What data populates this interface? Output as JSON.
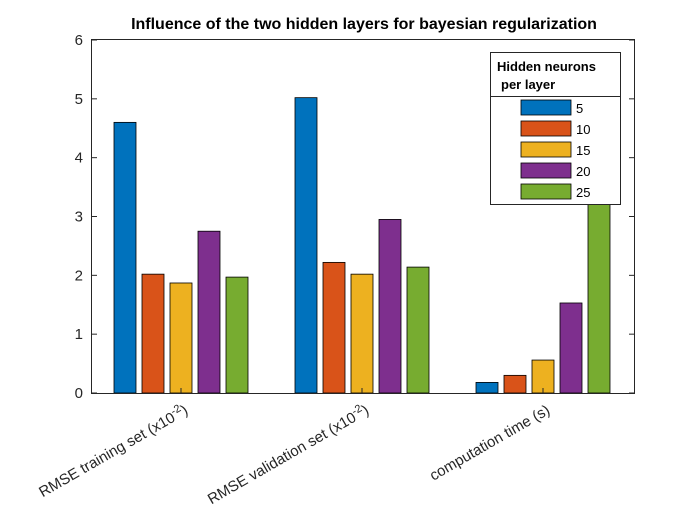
{
  "chart_data": {
    "type": "bar",
    "title": "Influence of the two hidden layers for bayesian regularization",
    "categories": [
      {
        "label": "RMSE training set (x10",
        "exp": "-2",
        "suffix": ")"
      },
      {
        "label": "RMSE validation set (x10",
        "exp": "-2",
        "suffix": ")"
      },
      {
        "label": "computation time (s)",
        "exp": "",
        "suffix": ""
      }
    ],
    "series": [
      {
        "name": "5",
        "color": "#0072BD",
        "values": [
          4.6,
          5.02,
          0.18
        ]
      },
      {
        "name": "10",
        "color": "#D95319",
        "values": [
          2.02,
          2.22,
          0.3
        ]
      },
      {
        "name": "15",
        "color": "#EDB120",
        "values": [
          1.87,
          2.02,
          0.56
        ]
      },
      {
        "name": "20",
        "color": "#7E2F8E",
        "values": [
          2.75,
          2.95,
          1.53
        ]
      },
      {
        "name": "25",
        "color": "#77AC30",
        "values": [
          1.97,
          2.14,
          3.3
        ]
      }
    ],
    "ylim": [
      0,
      6
    ],
    "yticks": [
      0,
      1,
      2,
      3,
      4,
      5,
      6
    ],
    "legend": {
      "title_line1": "Hidden neurons",
      "title_line2": "per layer",
      "position": "top-right"
    },
    "grid": false
  }
}
